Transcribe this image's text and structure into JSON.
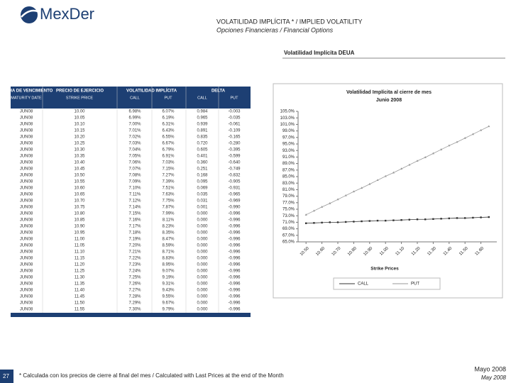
{
  "header": {
    "logo": "MexDer",
    "title": "VOLATILIDAD IMPLÍCITA * / IMPLIED VOLATILITY",
    "subtitle": "Opciones Financieras / Financial Options",
    "section": "Volatilidad Implícita DEUA"
  },
  "table": {
    "headers": [
      "FECHA DE VENCIMIENTO",
      "PRECIO DE EJERCICIO",
      "VOLATILIDAD IMPLÍCITA",
      "DELTA"
    ],
    "subheaders": [
      "MATURITY DATE",
      "STRIKE PRICE",
      "CALL",
      "PUT",
      "CALL",
      "PUT"
    ],
    "rows": [
      [
        "JUN08",
        "10.00",
        "6.98%",
        "6.07%",
        "0.984",
        "-0.003"
      ],
      [
        "JUN08",
        "10.05",
        "6.99%",
        "6.19%",
        "0.965",
        "-0.035"
      ],
      [
        "JUN08",
        "10.10",
        "7.00%",
        "6.31%",
        "0.939",
        "-0.061"
      ],
      [
        "JUN08",
        "10.15",
        "7.01%",
        "6.43%",
        "0.891",
        "-0.109"
      ],
      [
        "JUN08",
        "10.20",
        "7.02%",
        "6.55%",
        "0.835",
        "-0.165"
      ],
      [
        "JUN08",
        "10.25",
        "7.03%",
        "6.67%",
        "0.720",
        "-0.280"
      ],
      [
        "JUN08",
        "10.30",
        "7.04%",
        "6.79%",
        "0.605",
        "-0.395"
      ],
      [
        "JUN08",
        "10.35",
        "7.05%",
        "6.91%",
        "0.401",
        "-0.599"
      ],
      [
        "JUN08",
        "10.40",
        "7.06%",
        "7.03%",
        "0.360",
        "-0.640"
      ],
      [
        "JUN08",
        "10.45",
        "7.07%",
        "7.15%",
        "0.251",
        "-0.749"
      ],
      [
        "JUN08",
        "10.50",
        "7.08%",
        "7.27%",
        "0.168",
        "-0.832"
      ],
      [
        "JUN08",
        "10.55",
        "7.09%",
        "7.39%",
        "0.095",
        "-0.905"
      ],
      [
        "JUN08",
        "10.60",
        "7.10%",
        "7.51%",
        "0.069",
        "-0.931"
      ],
      [
        "JUN08",
        "10.65",
        "7.11%",
        "7.63%",
        "0.035",
        "-0.965"
      ],
      [
        "JUN08",
        "10.70",
        "7.12%",
        "7.75%",
        "0.031",
        "-0.969"
      ],
      [
        "JUN08",
        "10.75",
        "7.14%",
        "7.87%",
        "0.001",
        "-0.990"
      ],
      [
        "JUN08",
        "10.80",
        "7.15%",
        "7.99%",
        "0.000",
        "-0.996"
      ],
      [
        "JUN08",
        "10.85",
        "7.16%",
        "8.11%",
        "0.000",
        "-0.996"
      ],
      [
        "JUN08",
        "10.90",
        "7.17%",
        "8.23%",
        "0.000",
        "-0.996"
      ],
      [
        "JUN08",
        "10.95",
        "7.18%",
        "8.35%",
        "0.000",
        "-0.996"
      ],
      [
        "JUN08",
        "11.00",
        "7.19%",
        "8.47%",
        "0.000",
        "-0.996"
      ],
      [
        "JUN08",
        "11.05",
        "7.20%",
        "8.59%",
        "0.000",
        "-0.996"
      ],
      [
        "JUN08",
        "11.10",
        "7.21%",
        "8.71%",
        "0.000",
        "-0.996"
      ],
      [
        "JUN08",
        "11.15",
        "7.22%",
        "8.83%",
        "0.000",
        "-0.996"
      ],
      [
        "JUN08",
        "11.20",
        "7.23%",
        "8.95%",
        "0.000",
        "-0.996"
      ],
      [
        "JUN08",
        "11.25",
        "7.24%",
        "9.07%",
        "0.000",
        "-0.996"
      ],
      [
        "JUN08",
        "11.30",
        "7.25%",
        "9.19%",
        "0.000",
        "-0.996"
      ],
      [
        "JUN08",
        "11.35",
        "7.26%",
        "9.31%",
        "0.000",
        "-0.996"
      ],
      [
        "JUN08",
        "11.40",
        "7.27%",
        "9.43%",
        "0.000",
        "-0.996"
      ],
      [
        "JUN08",
        "11.45",
        "7.28%",
        "9.55%",
        "0.000",
        "-0.996"
      ],
      [
        "JUN08",
        "11.50",
        "7.29%",
        "9.67%",
        "0.000",
        "-0.996"
      ],
      [
        "JUN08",
        "11.55",
        "7.30%",
        "9.79%",
        "0.000",
        "-0.996"
      ]
    ]
  },
  "chart_data": {
    "type": "line",
    "title": "Volatilidad Implícita al cierre de mes",
    "subtitle": "Junio 2008",
    "x_label": "Strike Prices",
    "x": [
      10.5,
      10.55,
      10.6,
      10.65,
      10.7,
      10.75,
      10.8,
      10.85,
      10.9,
      10.95,
      11.0,
      11.05,
      11.1,
      11.15,
      11.2,
      11.25,
      11.3,
      11.35,
      11.4,
      11.45,
      11.5,
      11.55,
      11.6,
      11.65
    ],
    "series": [
      {
        "name": "CALL",
        "color": "#333333",
        "values": [
          70.7,
          70.8,
          70.9,
          71.0,
          71.0,
          71.1,
          71.2,
          71.3,
          71.4,
          71.5,
          71.5,
          71.6,
          71.7,
          71.8,
          71.9,
          71.9,
          72.0,
          72.1,
          72.2,
          72.3,
          72.3,
          72.4,
          72.5,
          72.6
        ]
      },
      {
        "name": "PUT",
        "color": "#999999",
        "values": [
          73.3,
          74.5,
          75.7,
          76.8,
          78.0,
          79.2,
          80.4,
          81.5,
          82.7,
          83.9,
          85.1,
          86.2,
          87.4,
          88.6,
          89.8,
          90.9,
          92.1,
          93.3,
          94.5,
          95.6,
          96.8,
          98.0,
          99.2,
          100.4
        ]
      }
    ],
    "xlim": [
      10.45,
      11.7
    ],
    "xticks": [
      {
        "value": 10.5,
        "label": "10.50"
      },
      {
        "value": 10.6,
        "label": "10.60"
      },
      {
        "value": 10.7,
        "label": "10.70"
      },
      {
        "value": 10.8,
        "label": "10.80"
      },
      {
        "value": 10.9,
        "label": "10.90"
      },
      {
        "value": 11,
        "label": "11.00"
      },
      {
        "value": 11.1,
        "label": "11.10"
      },
      {
        "value": 11.2,
        "label": "11.20"
      },
      {
        "value": 11.3,
        "label": "11.30"
      },
      {
        "value": 11.4,
        "label": "11.40"
      },
      {
        "value": 11.5,
        "label": "11.50"
      },
      {
        "value": 11.6,
        "label": "11.60"
      }
    ],
    "ylim": [
      65,
      105
    ],
    "yticks": [
      {
        "value": 105,
        "label": "105.0%"
      },
      {
        "value": 103,
        "label": "103.0%"
      },
      {
        "value": 101,
        "label": "101.0%"
      },
      {
        "value": 99,
        "label": "99.0%"
      },
      {
        "value": 97,
        "label": "97.0%"
      },
      {
        "value": 95,
        "label": "95.0%"
      },
      {
        "value": 93,
        "label": "93.0%"
      },
      {
        "value": 91,
        "label": "91.0%"
      },
      {
        "value": 89,
        "label": "89.0%"
      },
      {
        "value": 87,
        "label": "87.0%"
      },
      {
        "value": 85,
        "label": "85.0%"
      },
      {
        "value": 83,
        "label": "83.0%"
      },
      {
        "value": 81,
        "label": "81.0%"
      },
      {
        "value": 79,
        "label": "79.0%"
      },
      {
        "value": 77,
        "label": "77.0%"
      },
      {
        "value": 75,
        "label": "75.0%"
      },
      {
        "value": 73,
        "label": "73.0%"
      },
      {
        "value": 71,
        "label": "71.0%"
      },
      {
        "value": 69,
        "label": "69.0%"
      },
      {
        "value": 67,
        "label": "67.0%"
      },
      {
        "value": 65,
        "label": "65.0%"
      }
    ],
    "grid": false
  },
  "footer": {
    "page": "27",
    "note": "* Calculada con los precios de cierre al final del mes / Calculated with Last Prices at the end of the Month",
    "date": "Mayo 2008",
    "date_en": "May 2008"
  }
}
